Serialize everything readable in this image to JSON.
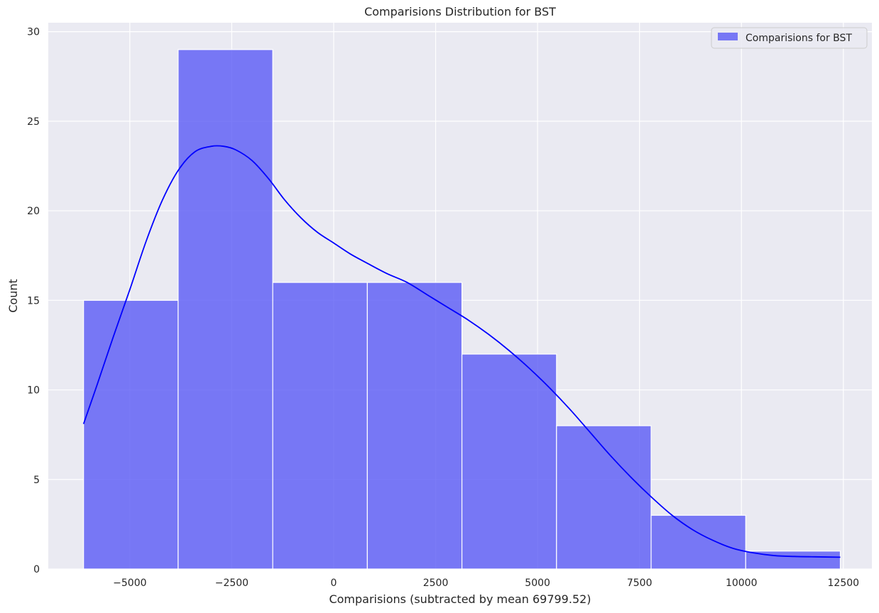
{
  "chart_data": {
    "type": "bar",
    "title": "Comparisions Distribution for BST",
    "xlabel": "Comparisions (subtracted by mean 69799.52)",
    "ylabel": "Count",
    "xlim": [
      -7000,
      13200
    ],
    "ylim": [
      0,
      30.5
    ],
    "xticks": [
      -5000,
      -2500,
      0,
      2500,
      5000,
      7500,
      10000,
      12500
    ],
    "xtick_labels": [
      "−5000",
      "−2500",
      "0",
      "2500",
      "5000",
      "7500",
      "10000",
      "12500"
    ],
    "yticks": [
      0,
      5,
      10,
      15,
      20,
      25,
      30
    ],
    "ytick_labels": [
      "0",
      "5",
      "10",
      "15",
      "20",
      "25",
      "30"
    ],
    "grid": true,
    "legend_position": "top-right",
    "series": [
      {
        "name": "Comparisions for BST",
        "kind": "histogram",
        "color": "#5a5af5",
        "bin_edges": [
          -6135,
          -3815,
          -1495,
          825,
          3145,
          5465,
          7785,
          10105,
          12425
        ],
        "counts": [
          15,
          29,
          16,
          16,
          12,
          8,
          3,
          1
        ]
      },
      {
        "kind": "kde",
        "color": "#0000ff",
        "x": [
          -6135,
          -5800,
          -5400,
          -5000,
          -4600,
          -4200,
          -3800,
          -3400,
          -3000,
          -2700,
          -2400,
          -2000,
          -1600,
          -1200,
          -800,
          -400,
          0,
          400,
          800,
          1300,
          1800,
          2300,
          2800,
          3300,
          3800,
          4300,
          4800,
          5300,
          5800,
          6300,
          6800,
          7300,
          7800,
          8300,
          8800,
          9300,
          9800,
          10300,
          10800,
          11300,
          11800,
          12425
        ],
        "y": [
          8.1,
          10.3,
          13.0,
          15.6,
          18.3,
          20.6,
          22.3,
          23.3,
          23.6,
          23.6,
          23.4,
          22.8,
          21.8,
          20.6,
          19.6,
          18.8,
          18.2,
          17.6,
          17.1,
          16.5,
          16.0,
          15.3,
          14.6,
          13.9,
          13.1,
          12.2,
          11.2,
          10.1,
          8.9,
          7.6,
          6.3,
          5.1,
          4.0,
          3.0,
          2.2,
          1.6,
          1.15,
          0.9,
          0.75,
          0.7,
          0.68,
          0.66
        ]
      }
    ]
  },
  "colors": {
    "background": "#eaeaf2",
    "grid": "#ffffff",
    "bar_edge": "#ffffff"
  }
}
